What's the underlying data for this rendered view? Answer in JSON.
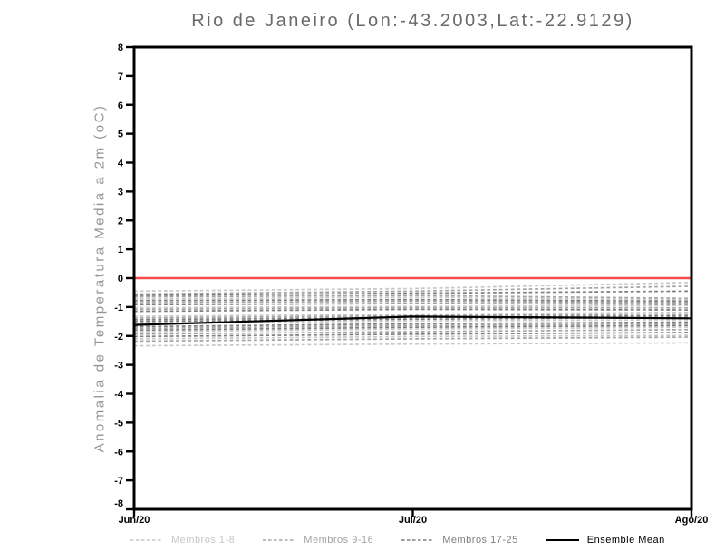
{
  "chart_data": {
    "type": "line",
    "title": "Rio de Janeiro (Lon:-43.2003,Lat:-22.9129)",
    "xlabel": "",
    "ylabel": "Anomalia de Temperatura Media a 2m (oC)",
    "ylim": [
      -8,
      8
    ],
    "y_ticks": [
      8,
      7,
      6,
      5,
      4,
      3,
      2,
      1,
      0,
      -1,
      -2,
      -3,
      -4,
      -5,
      -6,
      -7,
      -8
    ],
    "x_categories": [
      "Jun/20",
      "Jul/20",
      "Ago/20"
    ],
    "grid": false,
    "legend_position": "bottom",
    "zero_line": {
      "value": 0,
      "color": "#f24b4b"
    },
    "axis_color": "#000000",
    "groups": [
      {
        "label": "Membros 1-8",
        "color": "#c7c7c7",
        "style": "dashed"
      },
      {
        "label": "Membros 9-16",
        "color": "#a3a3a3",
        "style": "dashed"
      },
      {
        "label": "Membros 17-25",
        "color": "#7e7e7e",
        "style": "dashed"
      },
      {
        "label": "Ensemble Mean",
        "color": "#000000",
        "style": "solid"
      }
    ],
    "series": [
      {
        "group": 0,
        "values": [
          -0.45,
          -0.36,
          -0.15
        ]
      },
      {
        "group": 1,
        "values": [
          -0.55,
          -0.45,
          -0.28
        ]
      },
      {
        "group": 2,
        "values": [
          -0.6,
          -0.52,
          -0.45
        ]
      },
      {
        "group": 1,
        "values": [
          -0.65,
          -0.6,
          -0.7
        ]
      },
      {
        "group": 0,
        "values": [
          -0.72,
          -0.66,
          -0.75
        ]
      },
      {
        "group": 2,
        "values": [
          -0.78,
          -0.74,
          -0.8
        ]
      },
      {
        "group": 1,
        "values": [
          -0.85,
          -0.8,
          -0.85
        ]
      },
      {
        "group": 2,
        "values": [
          -0.92,
          -0.88,
          -0.9
        ]
      },
      {
        "group": 0,
        "values": [
          -1.02,
          -0.98,
          -0.95
        ]
      },
      {
        "group": 1,
        "values": [
          -1.08,
          -1.02,
          -1.03
        ]
      },
      {
        "group": 2,
        "values": [
          -1.15,
          -1.08,
          -1.1
        ]
      },
      {
        "group": 0,
        "values": [
          -1.32,
          -1.25,
          -1.18
        ]
      },
      {
        "group": 1,
        "values": [
          -1.38,
          -1.3,
          -1.24
        ]
      },
      {
        "group": 2,
        "values": [
          -1.44,
          -1.36,
          -1.3
        ]
      },
      {
        "group": 2,
        "values": [
          -1.5,
          -1.42,
          -1.36
        ]
      },
      {
        "group": 0,
        "values": [
          -1.56,
          -1.48,
          -1.44
        ]
      },
      {
        "group": 2,
        "values": [
          -1.68,
          -1.58,
          -1.52
        ]
      },
      {
        "group": 1,
        "values": [
          -1.74,
          -1.64,
          -1.58
        ]
      },
      {
        "group": 2,
        "values": [
          -1.8,
          -1.7,
          -1.64
        ]
      },
      {
        "group": 0,
        "values": [
          -1.86,
          -1.76,
          -1.7
        ]
      },
      {
        "group": 1,
        "values": [
          -1.94,
          -1.85,
          -1.78
        ]
      },
      {
        "group": 2,
        "values": [
          -2.02,
          -1.94,
          -1.88
        ]
      },
      {
        "group": 0,
        "values": [
          -2.1,
          -2.02,
          -1.98
        ]
      },
      {
        "group": 1,
        "values": [
          -2.18,
          -2.1,
          -2.04
        ]
      },
      {
        "group": 0,
        "values": [
          -2.34,
          -2.28,
          -2.24
        ]
      }
    ],
    "ensemble_mean": {
      "label": "Ensemble Mean",
      "values": [
        -1.62,
        -1.33,
        -1.39
      ]
    }
  }
}
